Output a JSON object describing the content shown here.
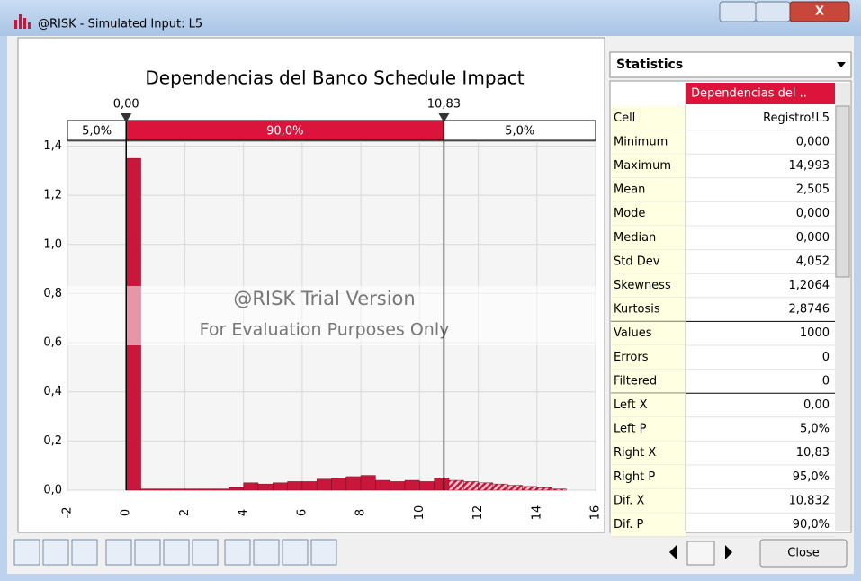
{
  "window": {
    "title": "@RISK - Simulated Input: L5"
  },
  "chart_data": {
    "type": "histogram",
    "title": "Dependencias del Banco Schedule Impact",
    "bins": [
      0,
      0.5,
      1,
      1.5,
      2,
      2.5,
      3,
      3.5,
      4,
      4.5,
      5,
      5.5,
      6,
      6.5,
      7,
      7.5,
      8,
      8.5,
      9,
      9.5,
      10,
      10.5,
      11,
      11.5,
      12,
      12.5,
      13,
      13.5,
      14,
      14.5,
      15
    ],
    "values": [
      1.35,
      0.005,
      0.005,
      0.005,
      0.005,
      0.005,
      0.005,
      0.01,
      0.03,
      0.025,
      0.03,
      0.035,
      0.035,
      0.045,
      0.05,
      0.055,
      0.06,
      0.04,
      0.035,
      0.04,
      0.035,
      0.05,
      0.04,
      0.035,
      0.03,
      0.025,
      0.02,
      0.015,
      0.01,
      0.005
    ],
    "color": "#c8173a",
    "xlim": [
      -2,
      16
    ],
    "xticks": [
      -2,
      0,
      2,
      4,
      6,
      8,
      10,
      12,
      14,
      16
    ],
    "ylim": [
      0,
      1.42
    ],
    "yticks": [
      {
        "value": 0,
        "label": "0,0"
      },
      {
        "value": 0.2,
        "label": "0,2"
      },
      {
        "value": 0.4,
        "label": "0,4"
      },
      {
        "value": 0.6,
        "label": "0,6"
      },
      {
        "value": 0.8,
        "label": "0,8"
      },
      {
        "value": 1.0,
        "label": "1,0"
      },
      {
        "value": 1.2,
        "label": "1,2"
      },
      {
        "value": 1.4,
        "label": "1,4"
      }
    ],
    "grid": true,
    "delimiters": [
      {
        "value": 0,
        "label": "0,00"
      },
      {
        "value": 10.83,
        "label": "10,83"
      }
    ],
    "bands": {
      "values": [
        5,
        90,
        5
      ],
      "value_labels": [
        "5,0%",
        "90,0%",
        "5,0%"
      ]
    },
    "watermark": [
      "@RISK Trial Version",
      "For Evaluation Purposes Only"
    ]
  },
  "stats": {
    "heading": "Statistics",
    "column": "Dependencias del ..",
    "rows": [
      [
        "Cell",
        "Registro!L5"
      ],
      [
        "Minimum",
        "0,000"
      ],
      [
        "Maximum",
        "14,993"
      ],
      [
        "Mean",
        "2,505"
      ],
      [
        "Mode",
        "0,000"
      ],
      [
        "Median",
        "0,000"
      ],
      [
        "Std Dev",
        "4,052"
      ],
      [
        "Skewness",
        "1,2064"
      ],
      [
        "Kurtosis",
        "2,8746"
      ],
      [
        "Values",
        "1000"
      ],
      [
        "Errors",
        "0"
      ],
      [
        "Filtered",
        "0"
      ],
      [
        "Left X",
        "0,00"
      ],
      [
        "Left P",
        "5,0%"
      ],
      [
        "Right X",
        "10,83"
      ],
      [
        "Right P",
        "95,0%"
      ],
      [
        "Dif. X",
        "10,832"
      ],
      [
        "Dif. P",
        "90,0%"
      ]
    ]
  },
  "buttons": {
    "close": "Close"
  }
}
